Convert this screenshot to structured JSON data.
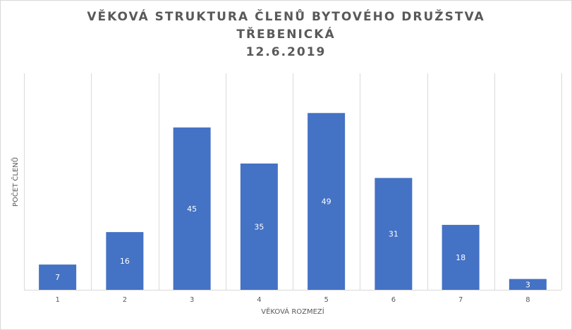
{
  "chart_data": {
    "type": "bar",
    "title_lines": [
      "VĚKOVÁ STRUKTURA ČLENŮ BYTOVÉHO DRUŽSTVA",
      "TŘEBENICKÁ",
      "12.6.2019"
    ],
    "xlabel": "VĚKOVÁ ROZMEZÍ",
    "ylabel": "POČET ČLENŮ",
    "categories": [
      "1",
      "2",
      "3",
      "4",
      "5",
      "6",
      "7",
      "8"
    ],
    "values": [
      7,
      16,
      45,
      35,
      49,
      31,
      18,
      3
    ],
    "ylim": [
      0,
      60
    ],
    "grid": "vertical",
    "legend": "none",
    "colors": {
      "bar": "#4472c4",
      "grid": "#d9d9d9",
      "axis": "#d9d9d9",
      "label_inside": "#ffffff",
      "tick_text": "#595959",
      "title_text": "#595959"
    }
  }
}
